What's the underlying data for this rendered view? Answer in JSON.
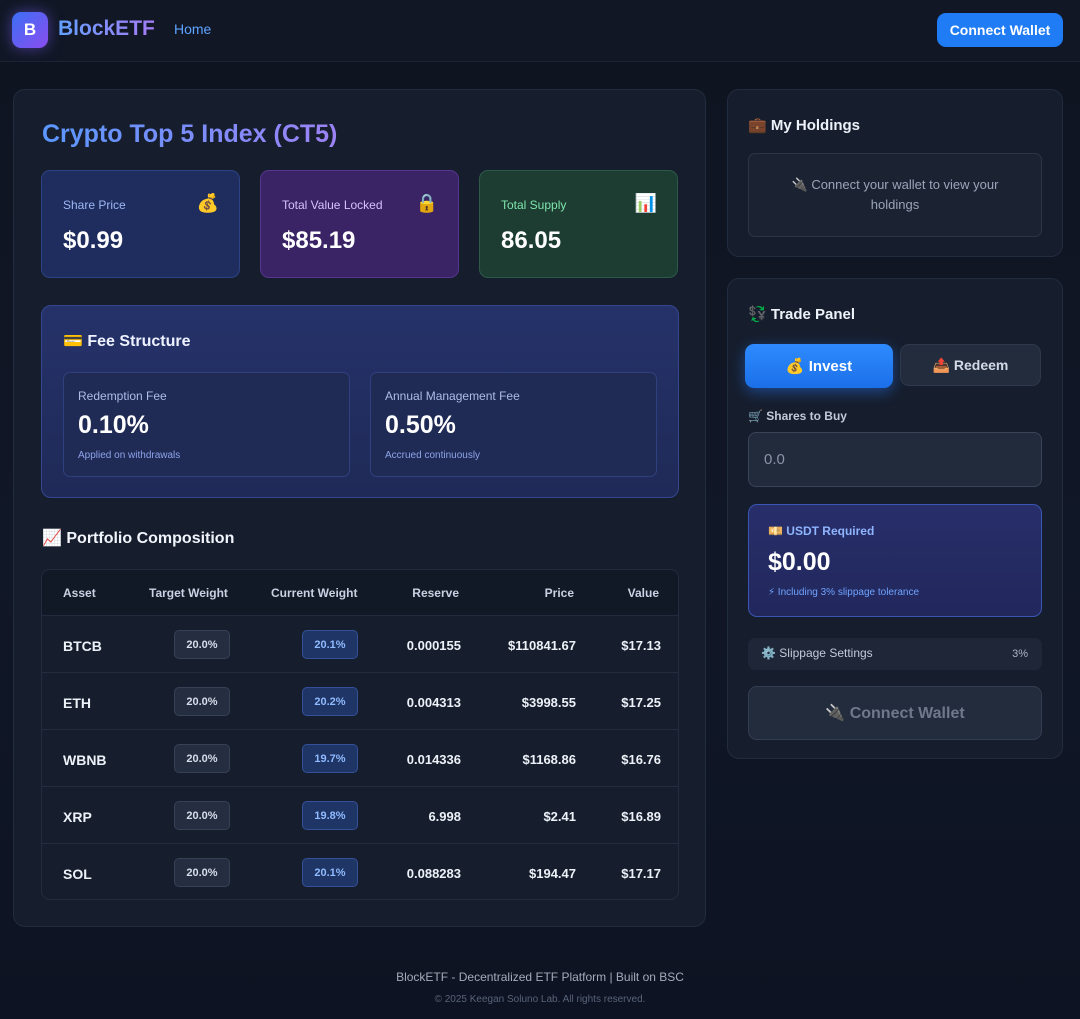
{
  "header": {
    "logo_letter": "B",
    "brand": "BlockETF",
    "nav_home": "Home",
    "connect_label": "Connect Wallet"
  },
  "index": {
    "title": "Crypto Top 5 Index (CT5)",
    "stats": [
      {
        "label": "Share Price",
        "value": "$0.99",
        "icon": "💰",
        "icon_name": "money-bag-icon"
      },
      {
        "label": "Total Value Locked",
        "value": "$85.19",
        "icon": "🔒",
        "icon_name": "lock-icon"
      },
      {
        "label": "Total Supply",
        "value": "86.05",
        "icon": "📊",
        "icon_name": "bar-chart-icon"
      }
    ]
  },
  "fees": {
    "icon": "💳",
    "title": "Fee Structure",
    "items": [
      {
        "label": "Redemption Fee",
        "value": "0.10%",
        "note": "Applied on withdrawals"
      },
      {
        "label": "Annual Management Fee",
        "value": "0.50%",
        "note": "Accrued continuously"
      }
    ]
  },
  "portfolio": {
    "icon": "📈",
    "title": "Portfolio Composition",
    "columns": [
      "Asset",
      "Target Weight",
      "Current Weight",
      "Reserve",
      "Price",
      "Value"
    ],
    "rows": [
      {
        "asset": "BTCB",
        "target": "20.0%",
        "current": "20.1%",
        "reserve": "0.000155",
        "price": "$110841.67",
        "value": "$17.13"
      },
      {
        "asset": "ETH",
        "target": "20.0%",
        "current": "20.2%",
        "reserve": "0.004313",
        "price": "$3998.55",
        "value": "$17.25"
      },
      {
        "asset": "WBNB",
        "target": "20.0%",
        "current": "19.7%",
        "reserve": "0.014336",
        "price": "$1168.86",
        "value": "$16.76"
      },
      {
        "asset": "XRP",
        "target": "20.0%",
        "current": "19.8%",
        "reserve": "6.998",
        "price": "$2.41",
        "value": "$16.89"
      },
      {
        "asset": "SOL",
        "target": "20.0%",
        "current": "20.1%",
        "reserve": "0.088283",
        "price": "$194.47",
        "value": "$17.17"
      }
    ]
  },
  "holdings": {
    "icon": "💼",
    "title": "My Holdings",
    "message": "🔌 Connect your wallet to view your holdings"
  },
  "trade": {
    "icon": "💱",
    "title": "Trade Panel",
    "tab_invest": "💰 Invest",
    "tab_redeem": "📤 Redeem",
    "active_tab": "Invest",
    "shares_label": "🛒 Shares to Buy",
    "shares_placeholder": "0.0",
    "usdt_label": "💴 USDT Required",
    "usdt_value": "$0.00",
    "usdt_note": "⚡ Including 3% slippage tolerance",
    "slippage_label": "⚙️ Slippage Settings",
    "slippage_value": "3%",
    "connect_label": "🔌 Connect Wallet"
  },
  "footer": {
    "main": "BlockETF - Decentralized ETF Platform | Built on BSC",
    "copyright": "© 2025 Keegan Soluno Lab. All rights reserved."
  },
  "colors": {
    "background": "#0f1420",
    "panel": "#161e2d",
    "accent": "#1f7cf5",
    "brand_gradient_start": "#63a0ff",
    "brand_gradient_end": "#a47cf5"
  }
}
